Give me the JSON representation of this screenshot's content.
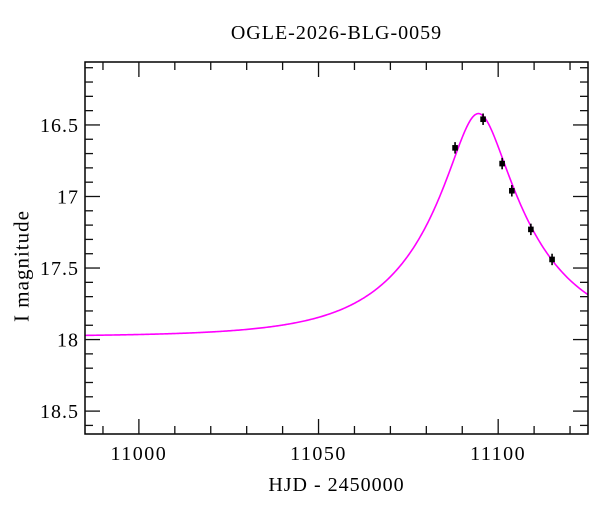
{
  "figure": {
    "title": "OGLE-2026-BLG-0059"
  },
  "chart_data": {
    "type": "line",
    "title": "OGLE-2026-BLG-0059",
    "xlabel": "HJD - 2450000",
    "ylabel": "I magnitude",
    "x_range": [
      10985,
      11125
    ],
    "y_range_mag": [
      16.06,
      18.66
    ],
    "y_axis_inverted": true,
    "grid": false,
    "legend": "none",
    "x_major_ticks": [
      {
        "value": 11000,
        "label": "11000"
      },
      {
        "value": 11050,
        "label": "11050"
      },
      {
        "value": 11100,
        "label": "11100"
      }
    ],
    "x_minor_tick_step": 10,
    "y_major_ticks": [
      {
        "value": 16.5,
        "label": "16.5"
      },
      {
        "value": 17.0,
        "label": "17"
      },
      {
        "value": 17.5,
        "label": "17.5"
      },
      {
        "value": 18.0,
        "label": "18"
      },
      {
        "value": 18.5,
        "label": "18.5"
      }
    ],
    "y_minor_tick_step": 0.1,
    "model_curve": {
      "model": "paczynski_point_lens",
      "t0": 11094.5,
      "tE_days": 30,
      "u0": 0.243,
      "baseline_mag": 17.98,
      "peak_mag": 16.42,
      "color": "#ff00ff"
    },
    "data_points": {
      "marker": "filled-square",
      "color": "#000000",
      "mag_error": 0.04,
      "points": [
        {
          "t": 11088.0,
          "mag": 16.66
        },
        {
          "t": 11095.8,
          "mag": 16.46
        },
        {
          "t": 11101.1,
          "mag": 16.77
        },
        {
          "t": 11103.8,
          "mag": 16.96
        },
        {
          "t": 11109.1,
          "mag": 17.23
        },
        {
          "t": 11115.0,
          "mag": 17.44
        }
      ]
    }
  }
}
